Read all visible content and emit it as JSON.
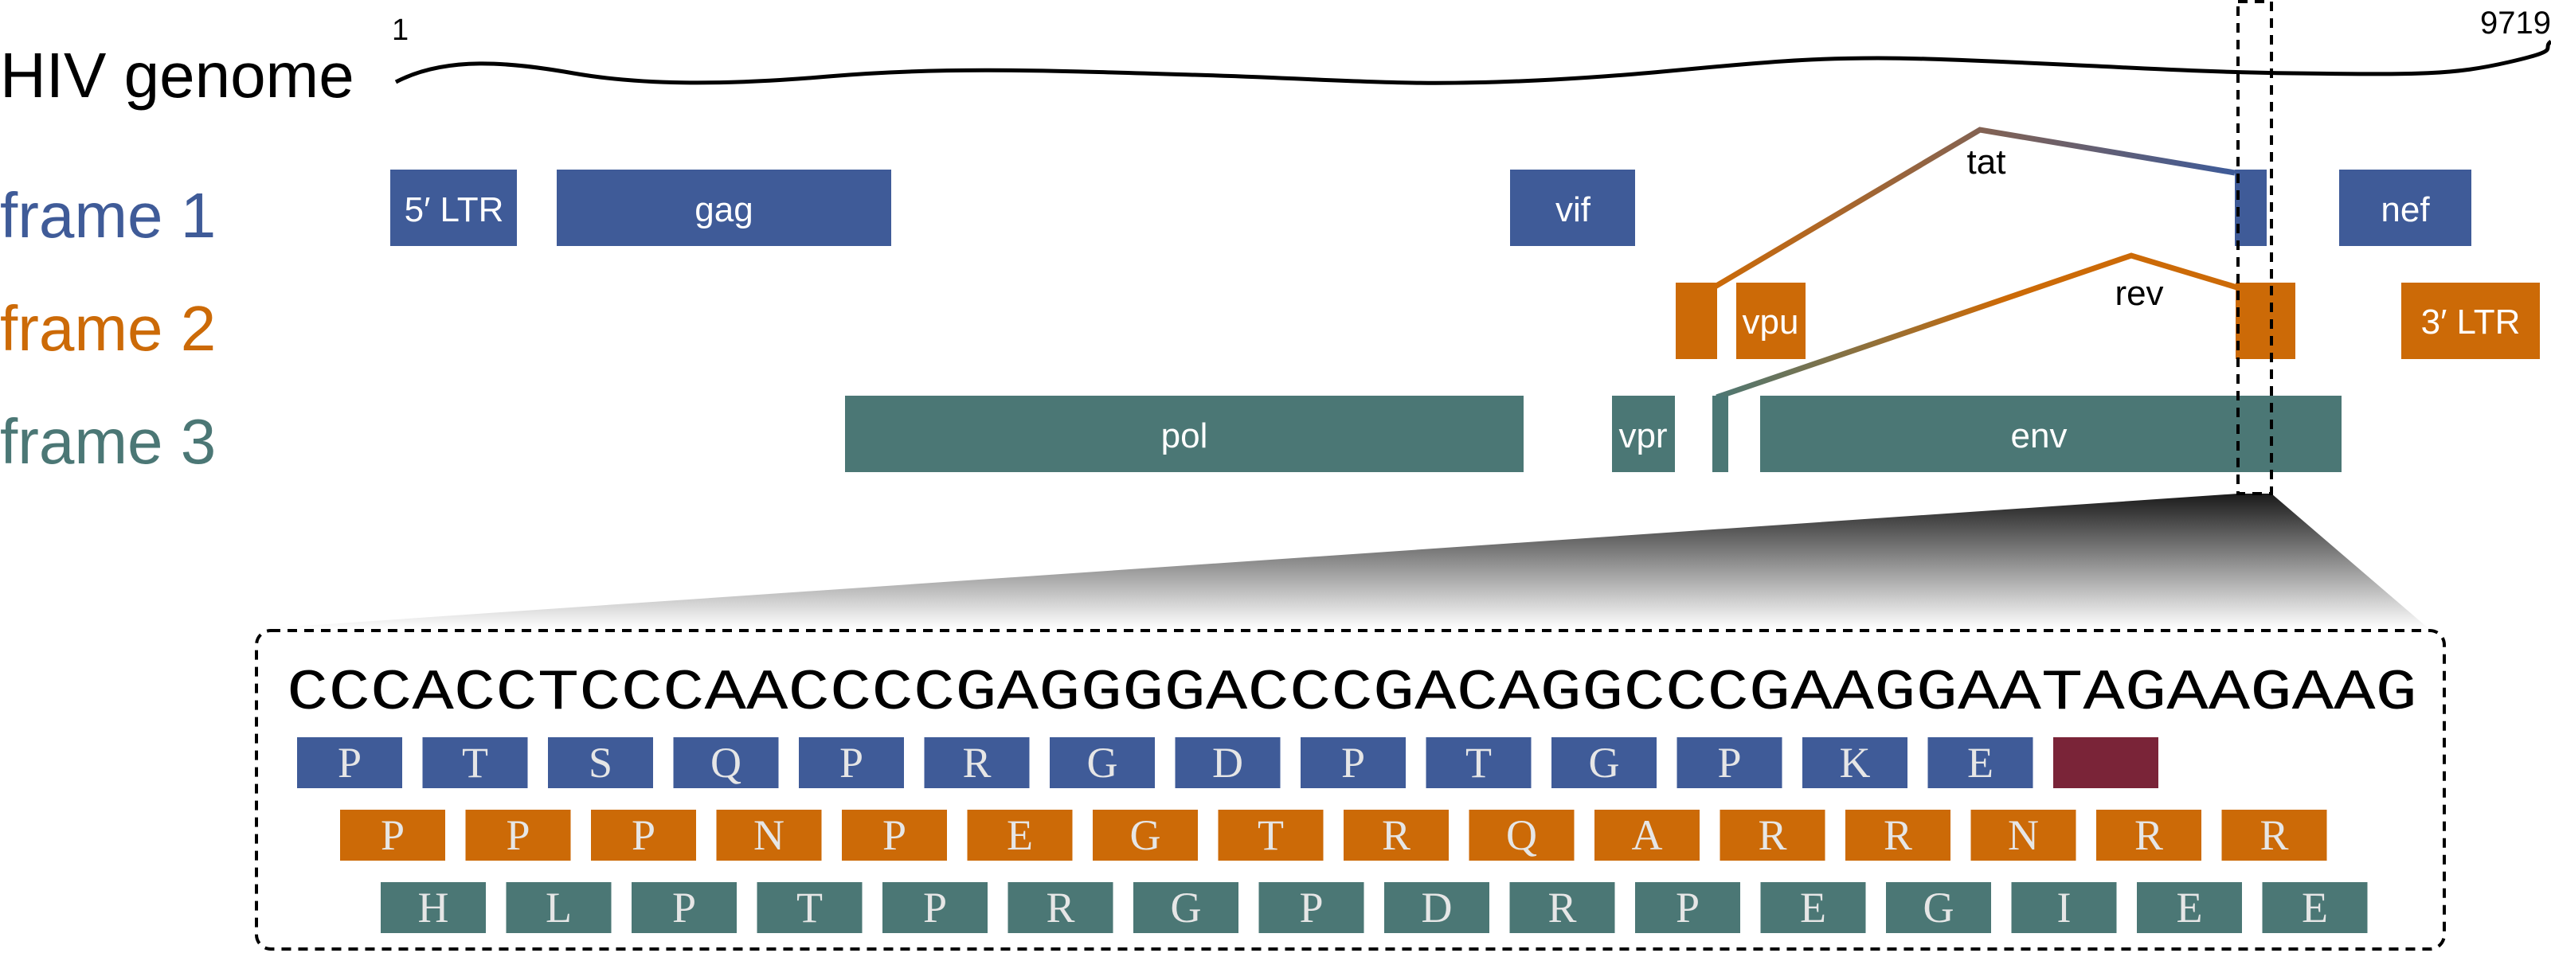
{
  "colors": {
    "frame1": "#3f5b98",
    "frame2": "#cc6a07",
    "frame3": "#4b7775",
    "stop": "#7a2438",
    "text": "#000000",
    "label_light": "#ffffff",
    "residue_text": "#e6e6e6"
  },
  "genome": {
    "title": "HIV genome",
    "start_label": "1",
    "end_label": "9719"
  },
  "frames": [
    {
      "label": "frame 1",
      "color_key": "frame1"
    },
    {
      "label": "frame 2",
      "color_key": "frame2"
    },
    {
      "label": "frame 3",
      "color_key": "frame3"
    }
  ],
  "genes": {
    "frame1": [
      {
        "name": "5′ LTR"
      },
      {
        "name": "gag"
      },
      {
        "name": "vif"
      },
      {
        "name": ""
      },
      {
        "name": "nef"
      }
    ],
    "frame2": [
      {
        "name": ""
      },
      {
        "name": "vpu"
      },
      {
        "name": ""
      },
      {
        "name": "3′ LTR"
      }
    ],
    "frame3": [
      {
        "name": "pol"
      },
      {
        "name": "vpr"
      },
      {
        "name": ""
      },
      {
        "name": "env"
      }
    ]
  },
  "splices": {
    "tat_label": "tat",
    "rev_label": "rev"
  },
  "zoom": {
    "sequence": "CCCACCTCCCAACCCCGAGGGGACCCGACAGGCCCGAAGGAATAGAAGAAG",
    "frame1_residues": [
      "P",
      "T",
      "S",
      "Q",
      "P",
      "R",
      "G",
      "D",
      "P",
      "T",
      "G",
      "P",
      "K",
      "E",
      ""
    ],
    "frame2_residues": [
      "P",
      "P",
      "P",
      "N",
      "P",
      "E",
      "G",
      "T",
      "R",
      "Q",
      "A",
      "R",
      "R",
      "N",
      "R",
      "R"
    ],
    "frame3_residues": [
      "H",
      "L",
      "P",
      "T",
      "P",
      "R",
      "G",
      "P",
      "D",
      "R",
      "P",
      "E",
      "G",
      "I",
      "E",
      "E"
    ]
  }
}
